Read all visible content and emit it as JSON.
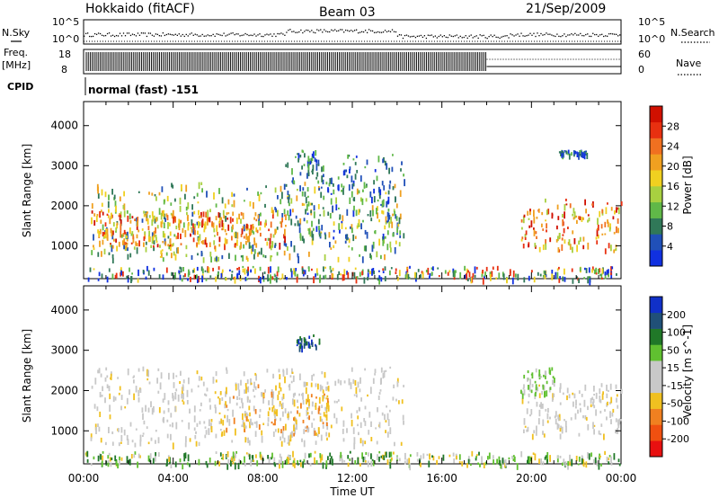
{
  "header": {
    "station": "Hokkaido (fitACF)",
    "beam": "Beam 03",
    "date": "21/Sep/2009"
  },
  "aux_panels": {
    "nsky_label": "N.Sky",
    "nsky_ticks": [
      "10^5",
      "10^0"
    ],
    "nsky_right_ticks": [
      "10^5",
      "10^0"
    ],
    "nsearch_label": "N.Search",
    "freq_label": "Freq.",
    "freq_unit": "[MHz]",
    "freq_ticks": [
      "18",
      "8"
    ],
    "nave_ticks": [
      "60",
      "0"
    ],
    "nave_label": "Nave",
    "cpid_label": "CPID",
    "cpid_text": "normal (fast) -151",
    "freq_active_until_hour": 18
  },
  "colors": {
    "power_scale": [
      "#1030e0",
      "#2050b8",
      "#307858",
      "#60b848",
      "#a8d040",
      "#f0d020",
      "#f0a020",
      "#f07020",
      "#e83010",
      "#d01000"
    ],
    "velocity_scale": [
      "#1030c8",
      "#205078",
      "#207828",
      "#60c030",
      "#c8c8c8",
      "#c8c8c8",
      "#f0c020",
      "#f08020",
      "#f05010",
      "#e81010"
    ]
  },
  "chart_data": [
    {
      "type": "heatmap",
      "title": "",
      "xlabel": "Time UT",
      "ylabel": "Slant Range [km]",
      "x_ticks": [
        "00:00",
        "04:00",
        "08:00",
        "12:00",
        "16:00",
        "20:00",
        "00:00"
      ],
      "xlim_hours": [
        0,
        24
      ],
      "y_ticks": [
        1000,
        2000,
        3000,
        4000
      ],
      "ylim_km": [
        180,
        4600
      ],
      "colorbar": {
        "label": "Power [dB]",
        "ticks": [
          "4",
          "8",
          "12",
          "16",
          "20",
          "24",
          "28"
        ],
        "range": [
          0,
          30
        ]
      },
      "regions": [
        {
          "t": [
            0.3,
            14.3
          ],
          "r": [
            700,
            2600
          ],
          "level": "mid"
        },
        {
          "t": [
            0.3,
            9.0
          ],
          "r": [
            1000,
            1900
          ],
          "level": "high"
        },
        {
          "t": [
            9.0,
            14.3
          ],
          "r": [
            1200,
            3300
          ],
          "level": "low"
        },
        {
          "t": [
            9.5,
            10.5
          ],
          "r": [
            2800,
            3400
          ],
          "level": "low"
        },
        {
          "t": [
            19.5,
            24
          ],
          "r": [
            900,
            2200
          ],
          "level": "high"
        },
        {
          "t": [
            21.2,
            22.5
          ],
          "r": [
            3300,
            3400
          ],
          "level": "low"
        },
        {
          "t": [
            0,
            24
          ],
          "r": [
            180,
            500
          ],
          "level": "ground"
        }
      ]
    },
    {
      "type": "heatmap",
      "title": "",
      "xlabel": "Time UT",
      "ylabel": "Slant Range [km]",
      "x_ticks": [
        "00:00",
        "04:00",
        "08:00",
        "12:00",
        "16:00",
        "20:00",
        "00:00"
      ],
      "xlim_hours": [
        0,
        24
      ],
      "y_ticks": [
        1000,
        2000,
        3000,
        4000
      ],
      "ylim_km": [
        180,
        4600
      ],
      "colorbar": {
        "label": "Velocity [m s^-1]",
        "ticks": [
          "200",
          "100",
          "50",
          "15",
          "-15",
          "-50",
          "-100",
          "-200"
        ],
        "range": [
          -250,
          250
        ]
      },
      "regions": [
        {
          "t": [
            0.3,
            14.3
          ],
          "r": [
            700,
            2600
          ],
          "level": "near-zero"
        },
        {
          "t": [
            6.0,
            11.0
          ],
          "r": [
            900,
            2200
          ],
          "level": "slightly-negative"
        },
        {
          "t": [
            9.5,
            10.5
          ],
          "r": [
            3100,
            3400
          ],
          "level": "positive"
        },
        {
          "t": [
            19.5,
            24
          ],
          "r": [
            900,
            2200
          ],
          "level": "near-zero"
        },
        {
          "t": [
            19.5,
            21.0
          ],
          "r": [
            1900,
            2600
          ],
          "level": "slightly-positive"
        },
        {
          "t": [
            0,
            24
          ],
          "r": [
            180,
            500
          ],
          "level": "ground"
        }
      ]
    }
  ]
}
